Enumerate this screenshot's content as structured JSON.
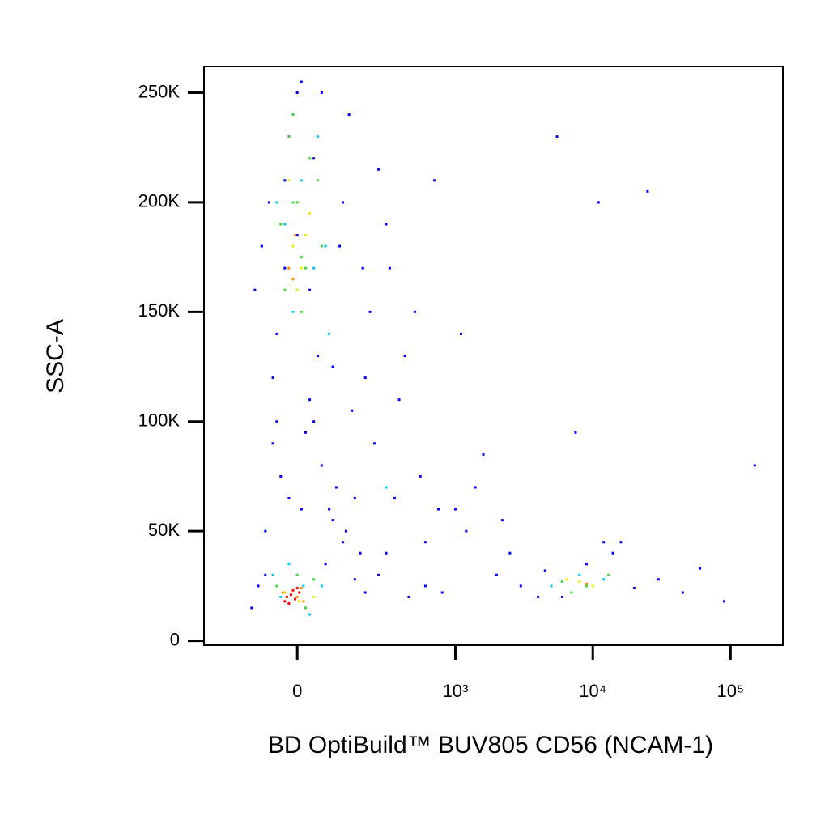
{
  "chart_data": {
    "type": "scatter",
    "x_label": "BD OptiBuild™ BUV805 CD56 (NCAM-1)",
    "y_label": "SSC-A",
    "xscale": "biexponential",
    "xlim": [
      -325,
      240000
    ],
    "xticks": [
      0,
      {
        "value": 1000,
        "label": "10³"
      },
      {
        "value": 10000,
        "label": "10⁴"
      },
      {
        "value": 100000,
        "label": "10⁵"
      }
    ],
    "ylim": [
      -2000,
      262000
    ],
    "yticks": [
      0,
      {
        "value": 50000,
        "label": "50K"
      },
      {
        "value": 100000,
        "label": "100K"
      },
      {
        "value": 150000,
        "label": "150K"
      },
      {
        "value": 200000,
        "label": "200K"
      },
      {
        "value": 250000,
        "label": "250K"
      }
    ],
    "series": [
      {
        "color": "#0000ff",
        "x": [
          -120,
          -80,
          -50,
          -20,
          10,
          40,
          80,
          120,
          160,
          200,
          -90,
          -60,
          -30,
          0,
          30,
          60,
          100,
          150,
          220,
          300,
          -100,
          -40,
          20,
          90,
          180,
          260,
          350,
          450,
          600,
          800,
          1000,
          1400,
          2000,
          3000,
          4500,
          6000,
          9000,
          14000,
          20000,
          30000,
          -70,
          -10,
          50,
          130,
          240,
          380,
          550,
          750,
          1100,
          1600,
          2500,
          4000,
          5500,
          7500,
          11000,
          16000,
          25000,
          45000,
          90000,
          150000,
          -110,
          -30,
          40,
          110,
          200,
          320,
          500,
          -60,
          10,
          70,
          140,
          260,
          420,
          700,
          1200,
          -80,
          0,
          60,
          120,
          190,
          30,
          -50,
          90,
          -20,
          160,
          300,
          600,
          2200,
          12000,
          60000
        ],
        "values": [
          15000,
          30000,
          140000,
          230000,
          255000,
          100000,
          60000,
          45000,
          28000,
          22000,
          180000,
          120000,
          210000,
          250000,
          160000,
          80000,
          70000,
          105000,
          150000,
          190000,
          25000,
          75000,
          95000,
          55000,
          40000,
          30000,
          65000,
          20000,
          25000,
          22000,
          60000,
          70000,
          30000,
          25000,
          32000,
          20000,
          35000,
          40000,
          24000,
          28000,
          200000,
          240000,
          130000,
          50000,
          90000,
          110000,
          75000,
          60000,
          140000,
          85000,
          40000,
          20000,
          230000,
          95000,
          200000,
          45000,
          205000,
          22000,
          18000,
          80000,
          160000,
          170000,
          220000,
          180000,
          120000,
          170000,
          150000,
          90000,
          60000,
          35000,
          240000,
          215000,
          130000,
          210000,
          50000,
          50000,
          185000,
          250000,
          200000,
          170000,
          110000,
          100000,
          125000,
          65000,
          65000,
          40000,
          45000,
          55000,
          45000,
          33000
        ]
      },
      {
        "color": "#00c8ff",
        "x": [
          -40,
          20,
          60,
          -10,
          40,
          -30,
          80,
          10,
          50,
          -60,
          300,
          5000,
          8000,
          12000,
          -20,
          30,
          0,
          70,
          -50,
          15
        ],
        "values": [
          20000,
          15000,
          25000,
          150000,
          170000,
          190000,
          140000,
          210000,
          230000,
          30000,
          70000,
          25000,
          30000,
          28000,
          35000,
          12000,
          160000,
          180000,
          200000,
          25000
        ]
      },
      {
        "color": "#3cdc3c",
        "x": [
          -30,
          0,
          30,
          60,
          -10,
          20,
          -40,
          50,
          10,
          -20,
          6000,
          9000,
          13000,
          7000,
          -50,
          40,
          0,
          20,
          -10,
          10
        ],
        "values": [
          160000,
          200000,
          220000,
          180000,
          240000,
          170000,
          190000,
          210000,
          150000,
          230000,
          27000,
          25000,
          30000,
          22000,
          25000,
          28000,
          30000,
          15000,
          200000,
          175000
        ]
      },
      {
        "color": "#f0f000",
        "x": [
          -10,
          10,
          30,
          -20,
          0,
          20,
          8000,
          10000,
          6500,
          -30,
          5,
          40
        ],
        "values": [
          180000,
          170000,
          195000,
          210000,
          160000,
          185000,
          27000,
          25000,
          28000,
          22000,
          18000,
          20000
        ]
      },
      {
        "color": "#ff8c00",
        "x": [
          -20,
          0,
          -35,
          10,
          -5,
          9000,
          15,
          -10
        ],
        "values": [
          170000,
          20000,
          22000,
          24000,
          185000,
          26000,
          18000,
          165000
        ]
      },
      {
        "color": "#ff0000",
        "x": [
          -25,
          -15,
          -5,
          5,
          -30,
          0,
          -20,
          -10
        ],
        "values": [
          20000,
          21000,
          19000,
          22000,
          18000,
          24000,
          17000,
          23000
        ]
      }
    ]
  }
}
